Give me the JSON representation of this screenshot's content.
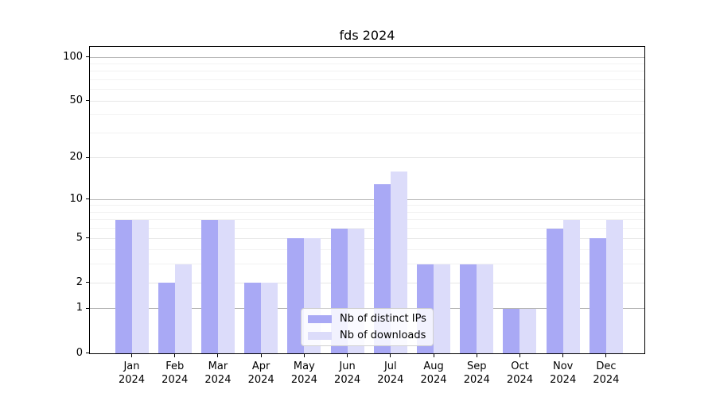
{
  "chart_data": {
    "type": "bar",
    "title": "fds 2024",
    "categories": [
      "Jan",
      "Feb",
      "Mar",
      "Apr",
      "May",
      "Jun",
      "Jul",
      "Aug",
      "Sep",
      "Oct",
      "Nov",
      "Dec"
    ],
    "category_year": "2024",
    "series": [
      {
        "name": "Nb of distinct IPs",
        "color": "#a9a9f5",
        "values": [
          7,
          2,
          7,
          2,
          5,
          6,
          13,
          3,
          3,
          1,
          6,
          5
        ]
      },
      {
        "name": "Nb of downloads",
        "color": "#dcdcfa",
        "values": [
          7,
          3,
          7,
          2,
          5,
          6,
          16,
          3,
          3,
          1,
          7,
          7
        ]
      }
    ],
    "yscale": "log1p",
    "ylim": [
      0,
      117
    ],
    "yticks": [
      0,
      1,
      2,
      5,
      10,
      20,
      50,
      100
    ],
    "yticks_strong": [
      1,
      10,
      100
    ],
    "yticks_minor": [
      3,
      4,
      6,
      7,
      8,
      9,
      30,
      40,
      60,
      70,
      80,
      90
    ],
    "grid": true,
    "legend_position": "inside-bottom-center",
    "colors": {
      "grid_strong": "#b5b5b5",
      "grid_weak": "#e7e7e7",
      "grid_minor": "#f2f2f2",
      "spine": "#000000",
      "background": "#ffffff"
    }
  }
}
